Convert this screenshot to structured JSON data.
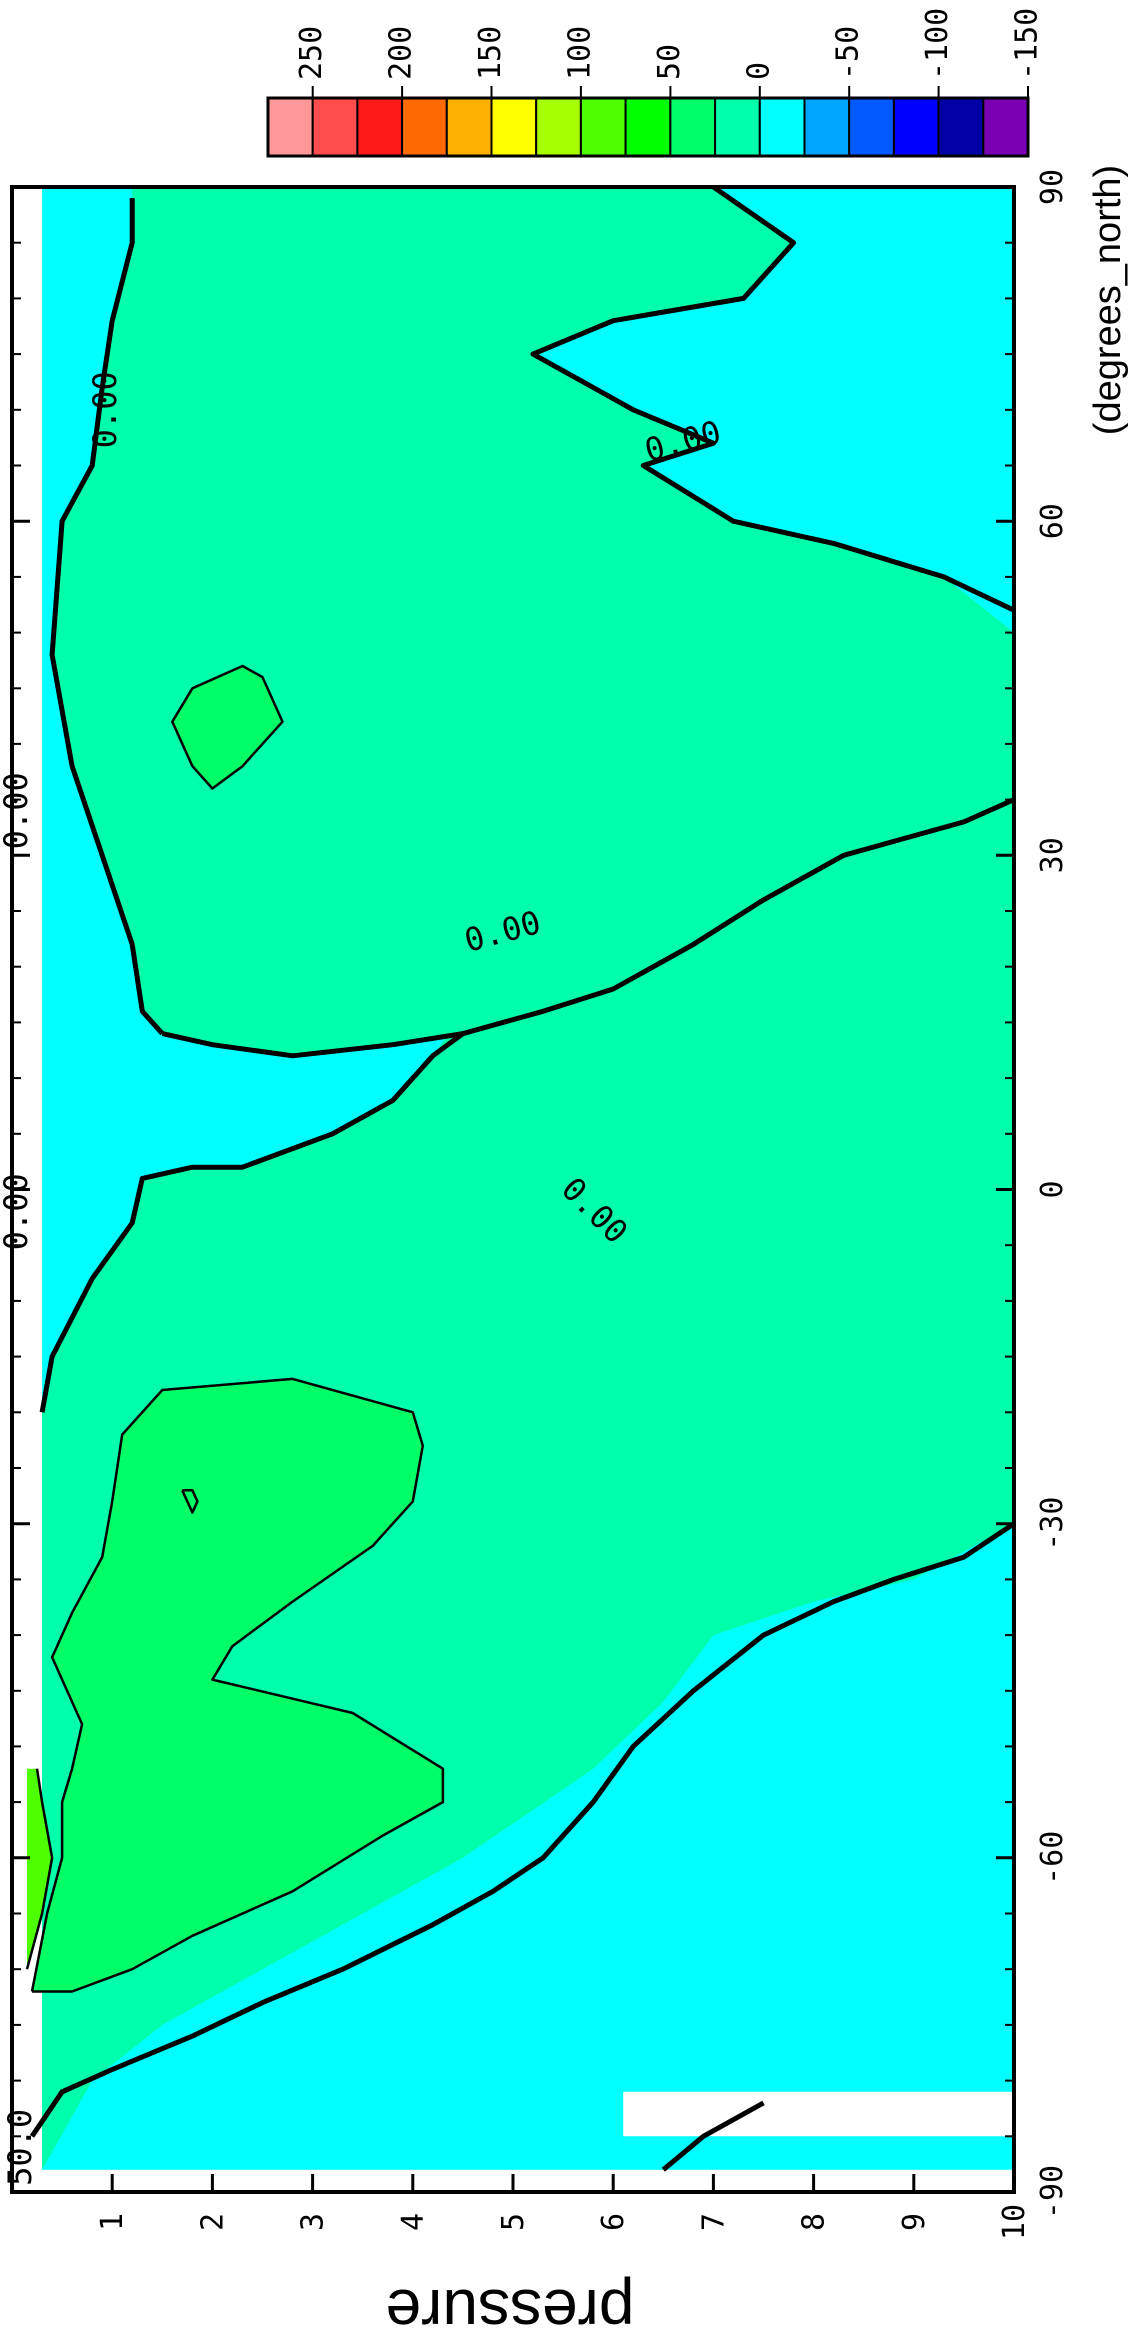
{
  "chart_data": {
    "type": "contour",
    "orientation": "rotated-90-clockwise",
    "xlabel": "(degrees_north)",
    "ylabel": "pressure",
    "xlim": [
      -90,
      90
    ],
    "ylim": [
      10,
      0
    ],
    "x_ticks": [
      "-90",
      "-60",
      "-30",
      "0",
      "30",
      "60",
      "90"
    ],
    "y_ticks": [
      "1",
      "2",
      "3",
      "4",
      "5",
      "6",
      "7",
      "8",
      "9",
      "10"
    ],
    "colorbar": {
      "labels": [
        "250",
        "200",
        "150",
        "100",
        "50",
        "0",
        "-50",
        "-100",
        "-150"
      ],
      "colors": [
        "#ff9999",
        "#ff4d4d",
        "#ff1a1a",
        "#ff6a00",
        "#ffb000",
        "#ffff00",
        "#a6ff00",
        "#4dff00",
        "#00ff00",
        "#00ff66",
        "#00ffaa",
        "#00ffff",
        "#00a6ff",
        "#005aff",
        "#0000ff",
        "#0000a6",
        "#7a00b4"
      ]
    },
    "fill_colors": {
      "negative": "#00ffff",
      "zero_to_50": "#00ffaa",
      "fifty_to_100": "#00ff66",
      "hundred_plus": "#4dff00",
      "missing": "#ffffff"
    },
    "contour_labels": [
      "0.00",
      "0.00",
      "0.00",
      "0.00",
      "0.00",
      "0.00",
      "50.0"
    ],
    "regions": [
      {
        "name": "negative-background",
        "level": "<0",
        "points": [
          [
            -88,
            0.3
          ],
          [
            90,
            0.3
          ],
          [
            90,
            10
          ],
          [
            -88,
            10
          ]
        ]
      },
      {
        "name": "main-positive-region",
        "level": "0-50",
        "points": [
          [
            -88,
            0.3
          ],
          [
            -20,
            0.3
          ],
          [
            -15,
            0.4
          ],
          [
            -8,
            0.8
          ],
          [
            -3,
            1.2
          ],
          [
            1,
            1.3
          ],
          [
            2,
            1.8
          ],
          [
            2,
            2.3
          ],
          [
            5,
            3.2
          ],
          [
            8,
            3.8
          ],
          [
            12,
            4.2
          ],
          [
            17,
            4.6
          ],
          [
            22,
            5.2
          ],
          [
            28,
            6.0
          ],
          [
            33,
            7.0
          ],
          [
            36,
            8.0
          ],
          [
            37,
            9.0
          ],
          [
            38,
            10
          ],
          [
            -30,
            10
          ],
          [
            -35,
            9.0
          ],
          [
            -37,
            8.0
          ],
          [
            -40,
            7.0
          ],
          [
            -46,
            6.5
          ],
          [
            -52,
            5.8
          ],
          [
            -60,
            4.5
          ],
          [
            -65,
            3.5
          ],
          [
            -70,
            2.5
          ],
          [
            -75,
            1.5
          ],
          [
            -80,
            0.8
          ],
          [
            -88,
            0.3
          ]
        ]
      },
      {
        "name": "upper-positive-region",
        "level": "0-50",
        "points": [
          [
            14,
            1.5
          ],
          [
            16,
            1.3
          ],
          [
            22,
            1.2
          ],
          [
            30,
            0.9
          ],
          [
            38,
            0.6
          ],
          [
            48,
            0.4
          ],
          [
            60,
            0.5
          ],
          [
            65,
            0.8
          ],
          [
            72,
            0.9
          ],
          [
            78,
            1.0
          ],
          [
            85,
            1.2
          ],
          [
            90,
            1.2
          ],
          [
            90,
            7.0
          ],
          [
            85,
            7.8
          ],
          [
            80,
            7.3
          ],
          [
            78,
            6.0
          ],
          [
            75,
            5.2
          ],
          [
            72,
            5.8
          ],
          [
            70,
            6.2
          ],
          [
            67,
            7.0
          ],
          [
            65,
            6.3
          ],
          [
            60,
            7.2
          ],
          [
            58,
            8.2
          ],
          [
            55,
            9.3
          ],
          [
            50,
            10
          ],
          [
            35,
            10
          ],
          [
            33,
            9.5
          ],
          [
            30,
            8.3
          ],
          [
            26,
            7.5
          ],
          [
            22,
            6.8
          ],
          [
            18,
            6.0
          ],
          [
            16,
            5.3
          ],
          [
            14,
            4.5
          ],
          [
            13,
            3.8
          ],
          [
            12,
            2.8
          ],
          [
            13,
            2.0
          ],
          [
            14,
            1.5
          ]
        ]
      },
      {
        "name": "southern-maximum",
        "level": "50-100",
        "points": [
          [
            -72,
            0.2
          ],
          [
            -65,
            0.35
          ],
          [
            -60,
            0.5
          ],
          [
            -55,
            0.5
          ],
          [
            -52,
            0.6
          ],
          [
            -48,
            0.7
          ],
          [
            -42,
            0.4
          ],
          [
            -38,
            0.6
          ],
          [
            -33,
            0.9
          ],
          [
            -28,
            1.0
          ],
          [
            -22,
            1.1
          ],
          [
            -18,
            1.5
          ],
          [
            -17,
            2.8
          ],
          [
            -20,
            4.0
          ],
          [
            -23,
            4.1
          ],
          [
            -28,
            4.0
          ],
          [
            -32,
            3.6
          ],
          [
            -37,
            2.8
          ],
          [
            -41,
            2.2
          ],
          [
            -44,
            2.0
          ],
          [
            -47,
            3.4
          ],
          [
            -52,
            4.3
          ],
          [
            -55,
            4.3
          ],
          [
            -58,
            3.7
          ],
          [
            -63,
            2.8
          ],
          [
            -67,
            1.8
          ],
          [
            -70,
            1.2
          ],
          [
            -72,
            0.6
          ],
          [
            -72,
            0.2
          ]
        ]
      },
      {
        "name": "southern-core",
        "level": ">=100",
        "points": [
          [
            -70,
            0.15
          ],
          [
            -65,
            0.3
          ],
          [
            -60,
            0.4
          ],
          [
            -55,
            0.3
          ],
          [
            -52,
            0.25
          ],
          [
            -52,
            0.15
          ],
          [
            -70,
            0.15
          ]
        ]
      },
      {
        "name": "northern-maximum",
        "level": "50-100",
        "points": [
          [
            38,
            1.8
          ],
          [
            42,
            1.6
          ],
          [
            45,
            1.8
          ],
          [
            47,
            2.3
          ],
          [
            46,
            2.5
          ],
          [
            42,
            2.7
          ],
          [
            38,
            2.3
          ],
          [
            36,
            2.0
          ],
          [
            38,
            1.8
          ]
        ]
      },
      {
        "name": "missing-bottom-left",
        "level": "missing",
        "points": [
          [
            -85,
            6.1
          ],
          [
            -81,
            6.1
          ],
          [
            -81,
            10
          ],
          [
            -85,
            10
          ]
        ]
      }
    ],
    "contours": [
      {
        "name": "zero-contour-south",
        "level": "0",
        "points": [
          [
            -30,
            10
          ],
          [
            -33,
            9.5
          ],
          [
            -35,
            8.8
          ],
          [
            -37,
            8.2
          ],
          [
            -40,
            7.5
          ],
          [
            -45,
            6.8
          ],
          [
            -50,
            6.2
          ],
          [
            -55,
            5.8
          ],
          [
            -60,
            5.3
          ],
          [
            -63,
            4.8
          ],
          [
            -66,
            4.2
          ],
          [
            -70,
            3.3
          ],
          [
            -73,
            2.5
          ],
          [
            -76,
            1.8
          ],
          [
            -79,
            1.0
          ],
          [
            -81,
            0.5
          ],
          [
            -85,
            0.2
          ]
        ]
      },
      {
        "name": "zero-contour-north",
        "level": "0",
        "points": [
          [
            14,
            1.5
          ],
          [
            16,
            1.3
          ],
          [
            22,
            1.2
          ],
          [
            30,
            0.9
          ],
          [
            38,
            0.6
          ],
          [
            48,
            0.4
          ],
          [
            60,
            0.5
          ],
          [
            65,
            0.8
          ],
          [
            72,
            0.9
          ],
          [
            78,
            1.0
          ],
          [
            85,
            1.2
          ],
          [
            89,
            1.2
          ]
        ]
      },
      {
        "name": "zero-contour-trough",
        "level": "0",
        "points": [
          [
            90,
            7.0
          ],
          [
            85,
            7.8
          ],
          [
            80,
            7.3
          ],
          [
            78,
            6.0
          ],
          [
            75,
            5.2
          ],
          [
            72,
            5.8
          ],
          [
            70,
            6.2
          ],
          [
            67,
            7.0
          ],
          [
            65,
            6.3
          ],
          [
            60,
            7.2
          ],
          [
            58,
            8.2
          ],
          [
            55,
            9.3
          ],
          [
            52,
            10
          ]
        ]
      },
      {
        "name": "zero-contour-equator",
        "level": "0",
        "points": [
          [
            14,
            1.5
          ],
          [
            13,
            2.0
          ],
          [
            12,
            2.8
          ],
          [
            13,
            3.8
          ],
          [
            14,
            4.5
          ],
          [
            16,
            5.3
          ],
          [
            18,
            6.0
          ],
          [
            22,
            6.8
          ],
          [
            26,
            7.5
          ],
          [
            30,
            8.3
          ],
          [
            33,
            9.5
          ],
          [
            35,
            10
          ]
        ]
      },
      {
        "name": "zero-contour-tropics",
        "level": "0",
        "points": [
          [
            -20,
            0.3
          ],
          [
            -15,
            0.4
          ],
          [
            -8,
            0.8
          ],
          [
            -3,
            1.2
          ],
          [
            1,
            1.3
          ],
          [
            2,
            1.8
          ],
          [
            2,
            2.3
          ],
          [
            5,
            3.2
          ],
          [
            8,
            3.8
          ],
          [
            12,
            4.2
          ],
          [
            14,
            4.5
          ]
        ]
      },
      {
        "name": "fifty-contour-south",
        "level": "50",
        "points": [
          [
            -72,
            0.2
          ],
          [
            -65,
            0.35
          ],
          [
            -60,
            0.5
          ],
          [
            -55,
            0.5
          ],
          [
            -52,
            0.6
          ],
          [
            -48,
            0.7
          ],
          [
            -42,
            0.4
          ],
          [
            -38,
            0.6
          ],
          [
            -33,
            0.9
          ],
          [
            -28,
            1.0
          ],
          [
            -22,
            1.1
          ],
          [
            -18,
            1.5
          ],
          [
            -17,
            2.8
          ],
          [
            -20,
            4.0
          ],
          [
            -23,
            4.1
          ],
          [
            -28,
            4.0
          ],
          [
            -32,
            3.6
          ],
          [
            -37,
            2.8
          ],
          [
            -41,
            2.2
          ],
          [
            -44,
            2.0
          ],
          [
            -47,
            3.4
          ],
          [
            -52,
            4.3
          ],
          [
            -55,
            4.3
          ],
          [
            -58,
            3.7
          ],
          [
            -63,
            2.8
          ],
          [
            -67,
            1.8
          ],
          [
            -70,
            1.2
          ],
          [
            -72,
            0.6
          ],
          [
            -72,
            0.2
          ]
        ]
      },
      {
        "name": "fifty-contour-north",
        "level": "50",
        "points": [
          [
            38,
            1.8
          ],
          [
            42,
            1.6
          ],
          [
            45,
            1.8
          ],
          [
            47,
            2.3
          ],
          [
            46,
            2.5
          ],
          [
            42,
            2.7
          ],
          [
            38,
            2.3
          ],
          [
            36,
            2.0
          ],
          [
            38,
            1.8
          ]
        ]
      },
      {
        "name": "hundred-contour-south",
        "level": "100",
        "points": [
          [
            -70,
            0.15
          ],
          [
            -65,
            0.3
          ],
          [
            -60,
            0.4
          ],
          [
            -55,
            0.3
          ],
          [
            -52,
            0.25
          ]
        ]
      },
      {
        "name": "small-closed-contour",
        "level": "50",
        "points": [
          [
            -27,
            1.7
          ],
          [
            -28,
            1.75
          ],
          [
            -29,
            1.8
          ],
          [
            -28,
            1.85
          ],
          [
            -27,
            1.8
          ],
          [
            -27,
            1.7
          ]
        ]
      },
      {
        "name": "negative-island-contour",
        "level": "0",
        "points": [
          [
            -88,
            6.5
          ],
          [
            -85,
            6.9
          ],
          [
            -82,
            7.5
          ]
        ]
      }
    ],
    "contour_label_positions": [
      {
        "text_index": 0,
        "x": 70,
        "y": 0.95,
        "rot": -90
      },
      {
        "text_index": 1,
        "x": 67,
        "y": 6.7,
        "rot": -15
      },
      {
        "text_index": 2,
        "x": 23,
        "y": 4.9,
        "rot": -15
      },
      {
        "text_index": 3,
        "x": -2,
        "y": 5.8,
        "rot": 45
      },
      {
        "text_index": 4,
        "x": 34,
        "y": 0.06,
        "rot": -90
      },
      {
        "text_index": 5,
        "x": -2,
        "y": 0.06,
        "rot": -90
      },
      {
        "text_index": 6,
        "x": -86,
        "y": 0.1,
        "rot": -90
      }
    ]
  }
}
